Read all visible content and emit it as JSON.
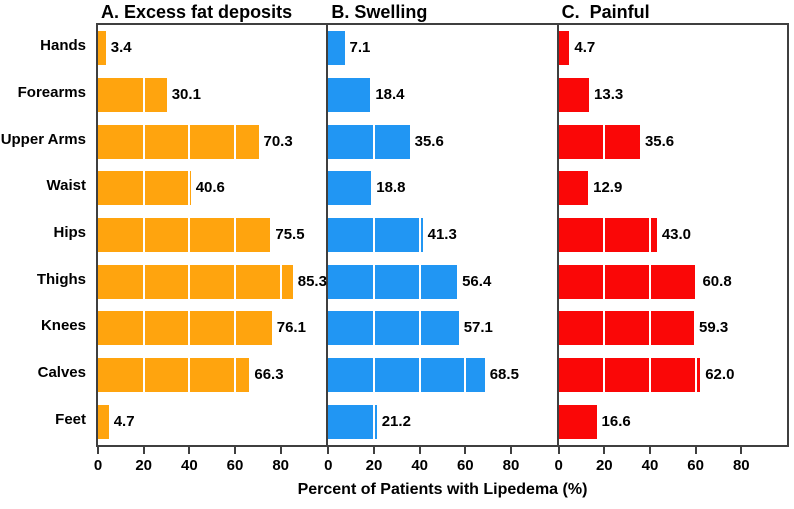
{
  "chart_data": {
    "type": "bar",
    "orientation": "horizontal",
    "grid": "white vertical gridlines over bars at each major tick",
    "legend": "none",
    "categories": [
      "Hands",
      "Forearms",
      "Upper Arms",
      "Waist",
      "Hips",
      "Thighs",
      "Knees",
      "Calves",
      "Feet"
    ],
    "xticks": [
      0,
      20,
      40,
      60,
      80
    ],
    "xtick_labels": [
      "0",
      "20",
      "40",
      "60",
      "80"
    ],
    "xlim": [
      0,
      100
    ],
    "xlabel": "Percent of Patients with Lipedema (%)",
    "axis_color": "#3f3f3f",
    "panels": [
      {
        "title": "A. Excess fat deposits",
        "color": "#FFA40E",
        "values": [
          3.4,
          30.1,
          70.3,
          40.6,
          75.5,
          85.3,
          76.1,
          66.3,
          4.7
        ],
        "labels": [
          "3.4",
          "30.1",
          "70.3",
          "40.6",
          "75.5",
          "85.3",
          "76.1",
          "66.3",
          "4.7"
        ]
      },
      {
        "title": "B. Swelling",
        "color": "#2196F3",
        "values": [
          7.1,
          18.4,
          35.6,
          18.8,
          41.3,
          56.4,
          57.1,
          68.5,
          21.2
        ],
        "labels": [
          "7.1",
          "18.4",
          "35.6",
          "18.8",
          "41.3",
          "56.4",
          "57.1",
          "68.5",
          "21.2"
        ]
      },
      {
        "title": "C.  Painful",
        "color": "#FA0707",
        "values": [
          4.7,
          13.3,
          35.6,
          12.9,
          43.0,
          60.8,
          59.3,
          62.0,
          16.6
        ],
        "labels": [
          "4.7",
          "13.3",
          "35.6",
          "12.9",
          "43.0",
          "60.8",
          "59.3",
          "62.0",
          "16.6"
        ]
      }
    ]
  }
}
